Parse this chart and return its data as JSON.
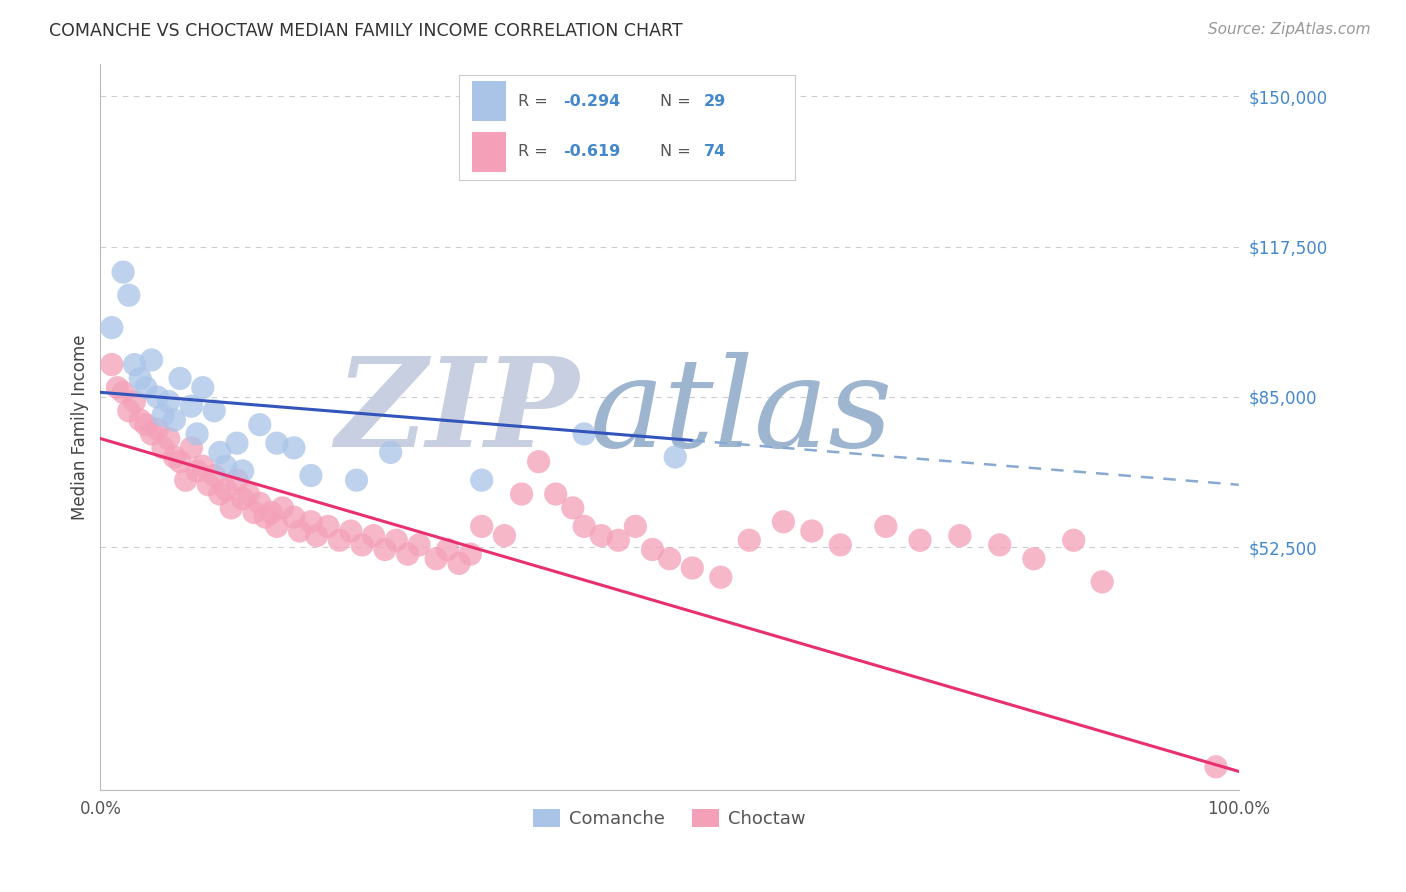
{
  "title": "COMANCHE VS CHOCTAW MEDIAN FAMILY INCOME CORRELATION CHART",
  "source": "Source: ZipAtlas.com",
  "ylabel": "Median Family Income",
  "xlim": [
    0.0,
    1.0
  ],
  "ylim": [
    0,
    157000
  ],
  "yticks": [
    0,
    52500,
    85000,
    117500,
    150000
  ],
  "ytick_labels": [
    "",
    "$52,500",
    "$85,000",
    "$117,500",
    "$150,000"
  ],
  "xticks": [
    0.0,
    0.25,
    0.5,
    0.75,
    1.0
  ],
  "xtick_labels": [
    "0.0%",
    "",
    "",
    "",
    "100.0%"
  ],
  "background_color": "#ffffff",
  "grid_color": "#c8c8d0",
  "watermark_zip_color": "#c8cfe0",
  "watermark_atlas_color": "#9eb5d0",
  "comanche_color": "#aac4e8",
  "choctaw_color": "#f4a0b8",
  "comanche_line_color": "#3355bb",
  "choctaw_line_color": "#e83070",
  "dashed_line_color": "#88aad0",
  "legend_text_color": "#4488cc",
  "legend_label_color": "#555555",
  "R_comanche": -0.294,
  "N_comanche": 29,
  "R_choctaw": -0.619,
  "N_choctaw": 74,
  "comanche_intercept": 86000,
  "comanche_slope": -20000,
  "choctaw_intercept": 76000,
  "choctaw_slope": -72000,
  "comanche_line_xmax": 0.52,
  "comanche_points_x": [
    0.01,
    0.02,
    0.025,
    0.03,
    0.035,
    0.04,
    0.045,
    0.05,
    0.055,
    0.06,
    0.065,
    0.07,
    0.08,
    0.085,
    0.09,
    0.1,
    0.105,
    0.11,
    0.12,
    0.125,
    0.14,
    0.155,
    0.17,
    0.185,
    0.225,
    0.255,
    0.335,
    0.425,
    0.505
  ],
  "comanche_points_y": [
    100000,
    112000,
    107000,
    92000,
    89000,
    87000,
    93000,
    85000,
    81000,
    84000,
    80000,
    89000,
    83000,
    77000,
    87000,
    82000,
    73000,
    70000,
    75000,
    69000,
    79000,
    75000,
    74000,
    68000,
    67000,
    73000,
    67000,
    77000,
    72000
  ],
  "choctaw_points_x": [
    0.01,
    0.015,
    0.02,
    0.025,
    0.03,
    0.035,
    0.04,
    0.045,
    0.05,
    0.055,
    0.06,
    0.065,
    0.07,
    0.075,
    0.08,
    0.085,
    0.09,
    0.095,
    0.1,
    0.105,
    0.11,
    0.115,
    0.12,
    0.125,
    0.13,
    0.135,
    0.14,
    0.145,
    0.15,
    0.155,
    0.16,
    0.17,
    0.175,
    0.185,
    0.19,
    0.2,
    0.21,
    0.22,
    0.23,
    0.24,
    0.25,
    0.26,
    0.27,
    0.28,
    0.295,
    0.305,
    0.315,
    0.325,
    0.335,
    0.355,
    0.37,
    0.385,
    0.4,
    0.415,
    0.425,
    0.44,
    0.455,
    0.47,
    0.485,
    0.5,
    0.52,
    0.545,
    0.57,
    0.6,
    0.625,
    0.65,
    0.69,
    0.72,
    0.755,
    0.79,
    0.82,
    0.855,
    0.88,
    0.98
  ],
  "choctaw_points_y": [
    92000,
    87000,
    86000,
    82000,
    84000,
    80000,
    79000,
    77000,
    78000,
    74000,
    76000,
    72000,
    71000,
    67000,
    74000,
    69000,
    70000,
    66000,
    68000,
    64000,
    65000,
    61000,
    67000,
    63000,
    64000,
    60000,
    62000,
    59000,
    60000,
    57000,
    61000,
    59000,
    56000,
    58000,
    55000,
    57000,
    54000,
    56000,
    53000,
    55000,
    52000,
    54000,
    51000,
    53000,
    50000,
    52000,
    49000,
    51000,
    57000,
    55000,
    64000,
    71000,
    64000,
    61000,
    57000,
    55000,
    54000,
    57000,
    52000,
    50000,
    48000,
    46000,
    54000,
    58000,
    56000,
    53000,
    57000,
    54000,
    55000,
    53000,
    50000,
    54000,
    45000,
    5000
  ]
}
